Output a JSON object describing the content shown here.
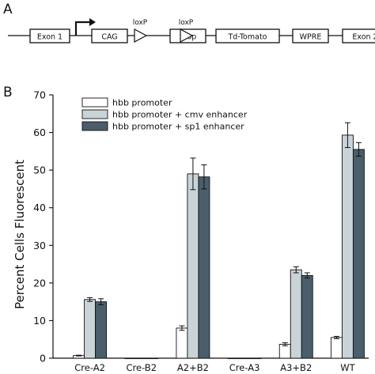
{
  "panel_a": {
    "label": "A",
    "elements": [
      {
        "kind": "box",
        "label": "Exon 1"
      },
      {
        "kind": "box",
        "label": "CAG"
      },
      {
        "kind": "lox",
        "label": "loxP"
      },
      {
        "kind": "box",
        "label": "Stop"
      },
      {
        "kind": "lox",
        "label": "loxP"
      },
      {
        "kind": "box",
        "label": "Td-Tomato"
      },
      {
        "kind": "box",
        "label": "WPRE"
      },
      {
        "kind": "box",
        "label": "Exon 2"
      }
    ]
  },
  "panel_b": {
    "label": "B"
  },
  "chart_data": {
    "type": "bar",
    "ylabel": "Percent Cells Fluorescent",
    "xlabel": "",
    "ylim": [
      0,
      70
    ],
    "yticks": [
      0,
      10,
      20,
      30,
      40,
      50,
      60,
      70
    ],
    "categories": [
      "Cre-A2",
      "Cre-B2",
      "A2+B2",
      "Cre-A3",
      "A3+B2",
      "WT"
    ],
    "legend_position": "top-left",
    "series": [
      {
        "name": "hbb promoter",
        "color": "#ffffff",
        "values": [
          0.7,
          0,
          8.0,
          0,
          3.7,
          5.5
        ],
        "errors": [
          0.1,
          0,
          0.6,
          0,
          0.4,
          0.3
        ]
      },
      {
        "name": "hbb promoter + cmv enhancer",
        "color": "#c9d4d9",
        "values": [
          15.6,
          0,
          49.0,
          0,
          23.5,
          59.3
        ],
        "errors": [
          0.5,
          0,
          4.2,
          0,
          0.8,
          3.3
        ]
      },
      {
        "name": "hbb promoter + sp1 enhancer",
        "color": "#4a5e6b",
        "values": [
          15.0,
          0,
          48.2,
          0,
          22.0,
          55.5
        ],
        "errors": [
          0.8,
          0,
          3.2,
          0,
          0.7,
          1.8
        ]
      }
    ]
  }
}
